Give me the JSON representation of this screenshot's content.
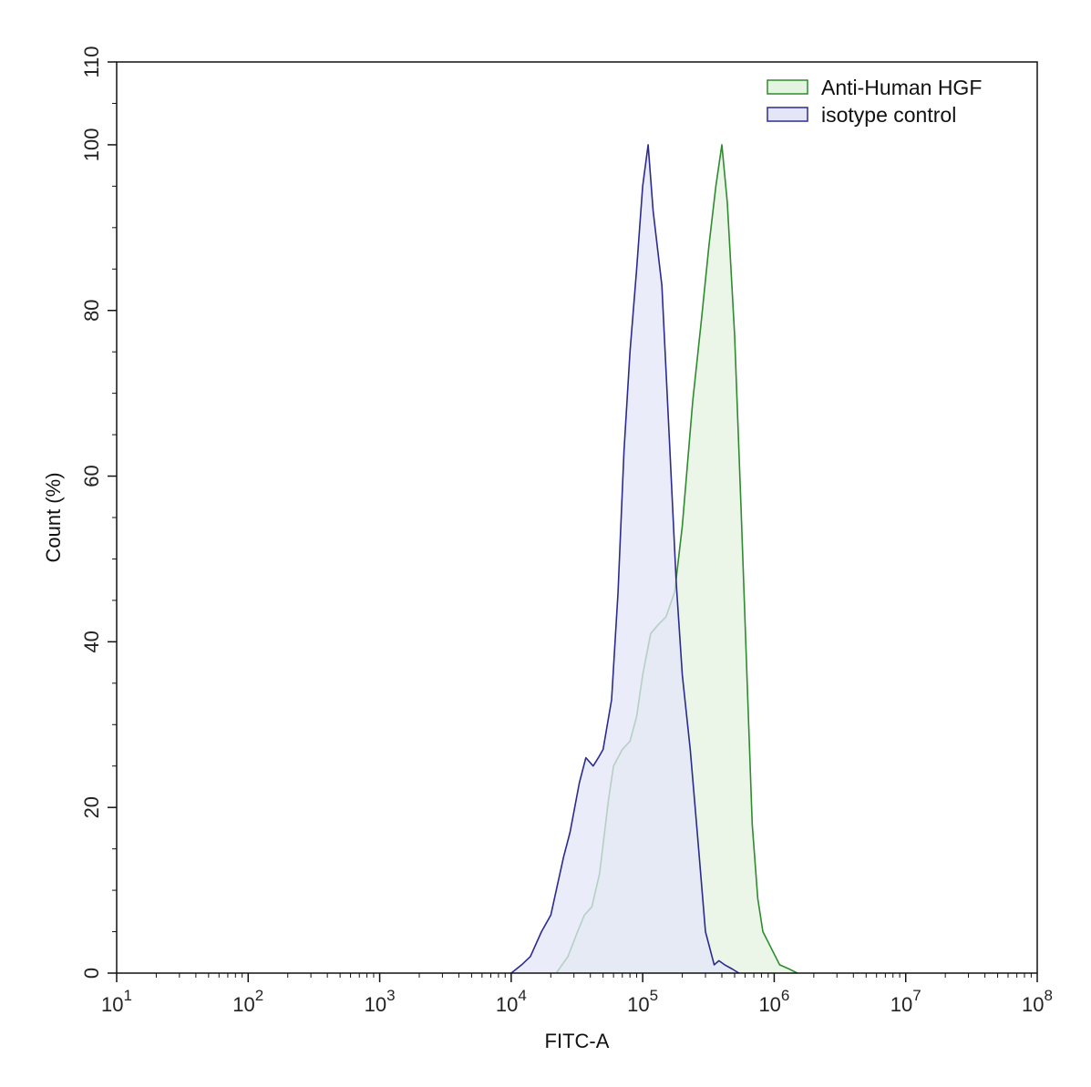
{
  "chart_data": {
    "type": "area",
    "title": "",
    "xlabel": "FITC-A",
    "ylabel": "Count  (%)",
    "x_scale": "log",
    "xlim": [
      10,
      100000000
    ],
    "ylim": [
      0,
      110
    ],
    "x_ticks": [
      {
        "base": "10",
        "exp": "1",
        "value": 10
      },
      {
        "base": "10",
        "exp": "2",
        "value": 100
      },
      {
        "base": "10",
        "exp": "3",
        "value": 1000
      },
      {
        "base": "10",
        "exp": "4",
        "value": 10000
      },
      {
        "base": "10",
        "exp": "5",
        "value": 100000
      },
      {
        "base": "10",
        "exp": "6",
        "value": 1000000
      },
      {
        "base": "10",
        "exp": "7",
        "value": 10000000
      },
      {
        "base": "10",
        "exp": "8",
        "value": 100000000
      }
    ],
    "y_ticks": [
      "0",
      "20",
      "40",
      "60",
      "80",
      "100",
      "110"
    ],
    "y_tick_values": [
      0,
      20,
      40,
      60,
      80,
      100,
      110
    ],
    "grid": false,
    "legend_position": "top-right",
    "series": [
      {
        "name": "Anti-Human HGF",
        "line_color": "#2e8b2e",
        "fill_color": "#e4f3e2",
        "points": [
          [
            22000,
            0
          ],
          [
            27000,
            2
          ],
          [
            32000,
            5
          ],
          [
            36000,
            7
          ],
          [
            41000,
            8
          ],
          [
            47000,
            12
          ],
          [
            55000,
            21
          ],
          [
            60000,
            25
          ],
          [
            70000,
            27
          ],
          [
            80000,
            28
          ],
          [
            90000,
            31
          ],
          [
            100000,
            36
          ],
          [
            115000,
            41
          ],
          [
            130000,
            42
          ],
          [
            150000,
            43
          ],
          [
            175000,
            46
          ],
          [
            200000,
            54
          ],
          [
            240000,
            69
          ],
          [
            280000,
            79
          ],
          [
            320000,
            88
          ],
          [
            360000,
            95
          ],
          [
            400000,
            100
          ],
          [
            440000,
            93
          ],
          [
            500000,
            77
          ],
          [
            560000,
            56
          ],
          [
            620000,
            36
          ],
          [
            680000,
            18
          ],
          [
            750000,
            9
          ],
          [
            820000,
            5
          ],
          [
            950000,
            3
          ],
          [
            1100000,
            1
          ],
          [
            1300000,
            0.5
          ],
          [
            1500000,
            0
          ]
        ]
      },
      {
        "name": "isotype control",
        "line_color": "#2b2b8f",
        "fill_color": "#e4e6f7",
        "points": [
          [
            10000,
            0
          ],
          [
            12000,
            1
          ],
          [
            14000,
            2
          ],
          [
            17000,
            5
          ],
          [
            20000,
            7
          ],
          [
            22000,
            10
          ],
          [
            25000,
            14
          ],
          [
            28000,
            17
          ],
          [
            33000,
            23
          ],
          [
            37000,
            26
          ],
          [
            42000,
            25
          ],
          [
            46000,
            26
          ],
          [
            50000,
            27
          ],
          [
            58000,
            33
          ],
          [
            65000,
            46
          ],
          [
            72000,
            63
          ],
          [
            80000,
            75
          ],
          [
            90000,
            85
          ],
          [
            100000,
            95
          ],
          [
            110000,
            100
          ],
          [
            120000,
            92
          ],
          [
            140000,
            83
          ],
          [
            160000,
            64
          ],
          [
            180000,
            47
          ],
          [
            200000,
            36
          ],
          [
            230000,
            27
          ],
          [
            260000,
            17
          ],
          [
            300000,
            5
          ],
          [
            350000,
            1
          ],
          [
            380000,
            1.5
          ],
          [
            420000,
            1
          ],
          [
            480000,
            0.5
          ],
          [
            540000,
            0
          ]
        ]
      }
    ]
  }
}
